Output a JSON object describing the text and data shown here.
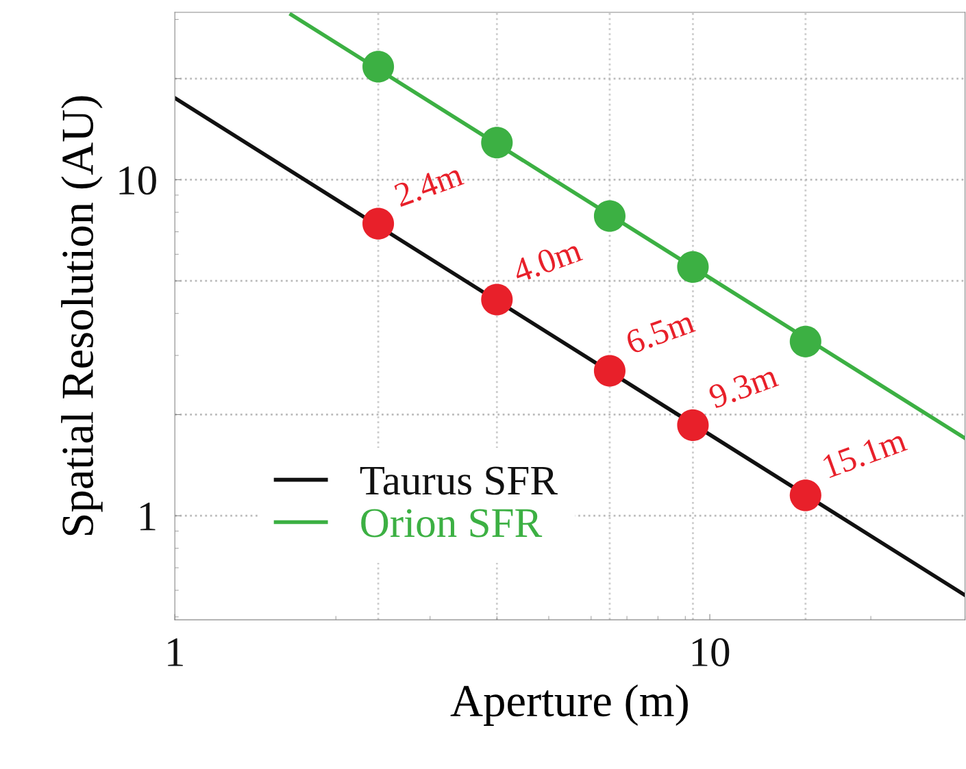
{
  "chart_data": {
    "type": "line",
    "xlabel": "Aperture (m)",
    "ylabel": "Spatial Resolution (AU)",
    "log": "xy",
    "xlim": [
      1,
      30
    ],
    "xticks": [
      1,
      10
    ],
    "ylim": [
      0.49,
      31.5
    ],
    "yticks": [
      1,
      {
        "value": 2,
        "label": null
      },
      {
        "value": 5,
        "label": null
      },
      10,
      {
        "value": 20,
        "label": null
      }
    ],
    "grid": "y",
    "legend": "bottom left",
    "annotations": [
      {
        "text": "2.4m",
        "x": 2.4,
        "y": 7.4
      },
      {
        "text": "4.0m",
        "x": 4.0,
        "y": 4.4
      },
      {
        "text": "6.5m",
        "x": 6.5,
        "y": 2.7
      },
      {
        "text": "9.3m",
        "x": 9.3,
        "y": 1.86
      },
      {
        "text": "15.1m",
        "x": 15.1,
        "y": 1.15
      }
    ],
    "ref_lines": [
      {
        "axis": "x",
        "value": 2.4,
        "color": "#cccccc",
        "line_style": "dotted"
      },
      {
        "axis": "x",
        "value": 4.0,
        "color": "#cccccc",
        "line_style": "dotted"
      },
      {
        "axis": "x",
        "value": 6.5,
        "color": "#cccccc",
        "line_style": "dotted"
      },
      {
        "axis": "x",
        "value": 9.3,
        "color": "#cccccc",
        "line_style": "dotted"
      },
      {
        "axis": "x",
        "value": 15.1,
        "color": "#cccccc",
        "line_style": "dotted"
      }
    ],
    "series": [
      {
        "name": "Taurus SFR",
        "color": "#111111",
        "x": [
          1,
          30
        ],
        "values": [
          17.5,
          0.58
        ],
        "marker": "none"
      },
      {
        "name": "Orion SFR",
        "color": "#3cb043",
        "x": [
          1.65,
          30
        ],
        "values": [
          31,
          1.7
        ],
        "marker": "none"
      },
      {
        "type": "scatter",
        "color": "#e8202a",
        "x": [
          2.4,
          4.0,
          6.5,
          9.3,
          15.1
        ],
        "values": [
          7.4,
          4.4,
          2.7,
          1.86,
          1.15
        ],
        "marker": "circle"
      },
      {
        "type": "scatter",
        "color": "#3cb043",
        "x": [
          2.4,
          4.0,
          6.5,
          9.3,
          15.1
        ],
        "values": [
          21.7,
          12.9,
          7.8,
          5.5,
          3.3
        ],
        "marker": "circle"
      }
    ]
  }
}
